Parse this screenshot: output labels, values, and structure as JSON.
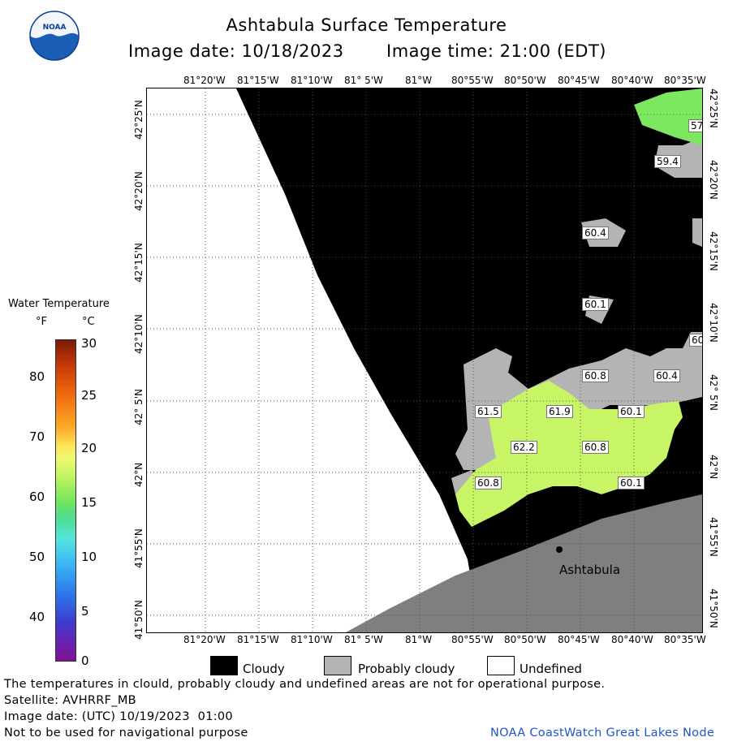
{
  "header": {
    "title": "Ashtabula Surface Temperature",
    "image_date": "Image date: 10/18/2023",
    "image_time": "Image time: 21:00 (EDT)",
    "logo_text": "NOAA"
  },
  "colorbar": {
    "title": "Water Temperature",
    "unit_f": "°F",
    "unit_c": "°C",
    "f_ticks": [
      "80",
      "70",
      "60",
      "50",
      "40"
    ],
    "c_ticks": [
      "30",
      "25",
      "20",
      "15",
      "10",
      "5",
      "0"
    ]
  },
  "map": {
    "lon_top": [
      "81°20'W",
      "81°15'W",
      "81°10'W",
      "81° 5'W",
      "81°W",
      "80°55'W",
      "80°50'W",
      "80°45'W",
      "80°40'W",
      "80°35'W"
    ],
    "lon_bottom": [
      "81°20'W",
      "81°15'W",
      "81°10'W",
      "81° 5'W",
      "81°W",
      "80°55'W",
      "80°50'W",
      "80°45'W",
      "80°40'W",
      "80°35'W"
    ],
    "lat_labels": [
      "42°25'N",
      "42°20'N",
      "42°15'N",
      "42°10'N",
      "42° 5'N",
      "42°N",
      "41°55'N",
      "41°50'N"
    ],
    "city": "Ashtabula",
    "temp_labels": [
      "57",
      "59.4",
      "60.4",
      "60.1",
      "60",
      "60.8",
      "60.4",
      "61.5",
      "61.9",
      "60.1",
      "62.2",
      "60.8",
      "60.8",
      "60.1"
    ]
  },
  "legend": {
    "cloudy": "Cloudy",
    "probably_cloudy": "Probably cloudy",
    "undefined": "Undefined"
  },
  "footer": {
    "warning": "The temperatures in clould, probably cloudy and undefined areas are not for operational purpose.",
    "satellite": "Satellite: AVHRRF_MB",
    "utc_date": "Image date: (UTC) 10/19/2023  01:00",
    "nav_note": "Not to be used for navigational purpose",
    "credit": "NOAA CoastWatch Great Lakes Node"
  },
  "colors": {
    "cloudy": "#000000",
    "probably_cloudy": "#b4b4b4",
    "undefined": "#ffffff",
    "land": "#7f7f7f",
    "credit": "#2255cc"
  }
}
